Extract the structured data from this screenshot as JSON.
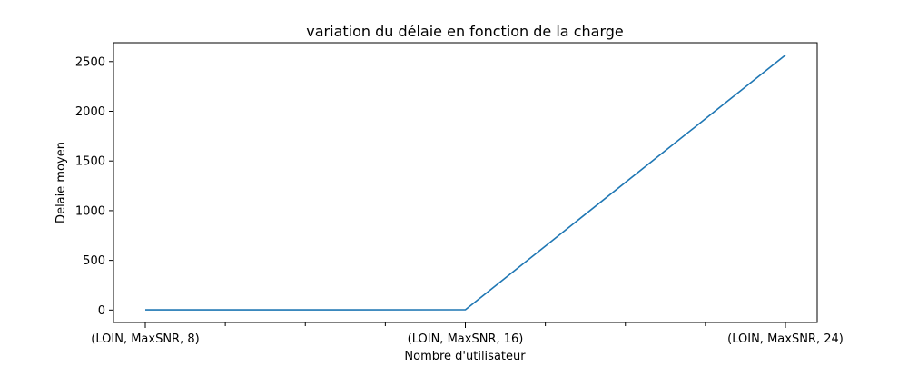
{
  "chart_data": {
    "type": "line",
    "title": "variation du délaie en fonction de la charge",
    "xlabel": "Nombre d'utilisateur",
    "ylabel": "Delaie moyen",
    "categories": [
      "(LOIN, MaxSNR, 8)",
      "(LOIN, MaxSNR, 16)",
      "(LOIN, MaxSNR, 24)"
    ],
    "series": [
      {
        "values": [
          2,
          3,
          2565
        ],
        "color": "#1f77b4"
      }
    ],
    "x_tick_labels": [
      "(LOIN, MaxSNR, 8)",
      "(LOIN, MaxSNR, 16)",
      "(LOIN, MaxSNR, 24)"
    ],
    "x_minor_ticks": 9,
    "y_ticks": [
      0,
      500,
      1000,
      1500,
      2000,
      2500
    ],
    "ylim": [
      -125,
      2690
    ],
    "grid": false,
    "legend": "none"
  }
}
